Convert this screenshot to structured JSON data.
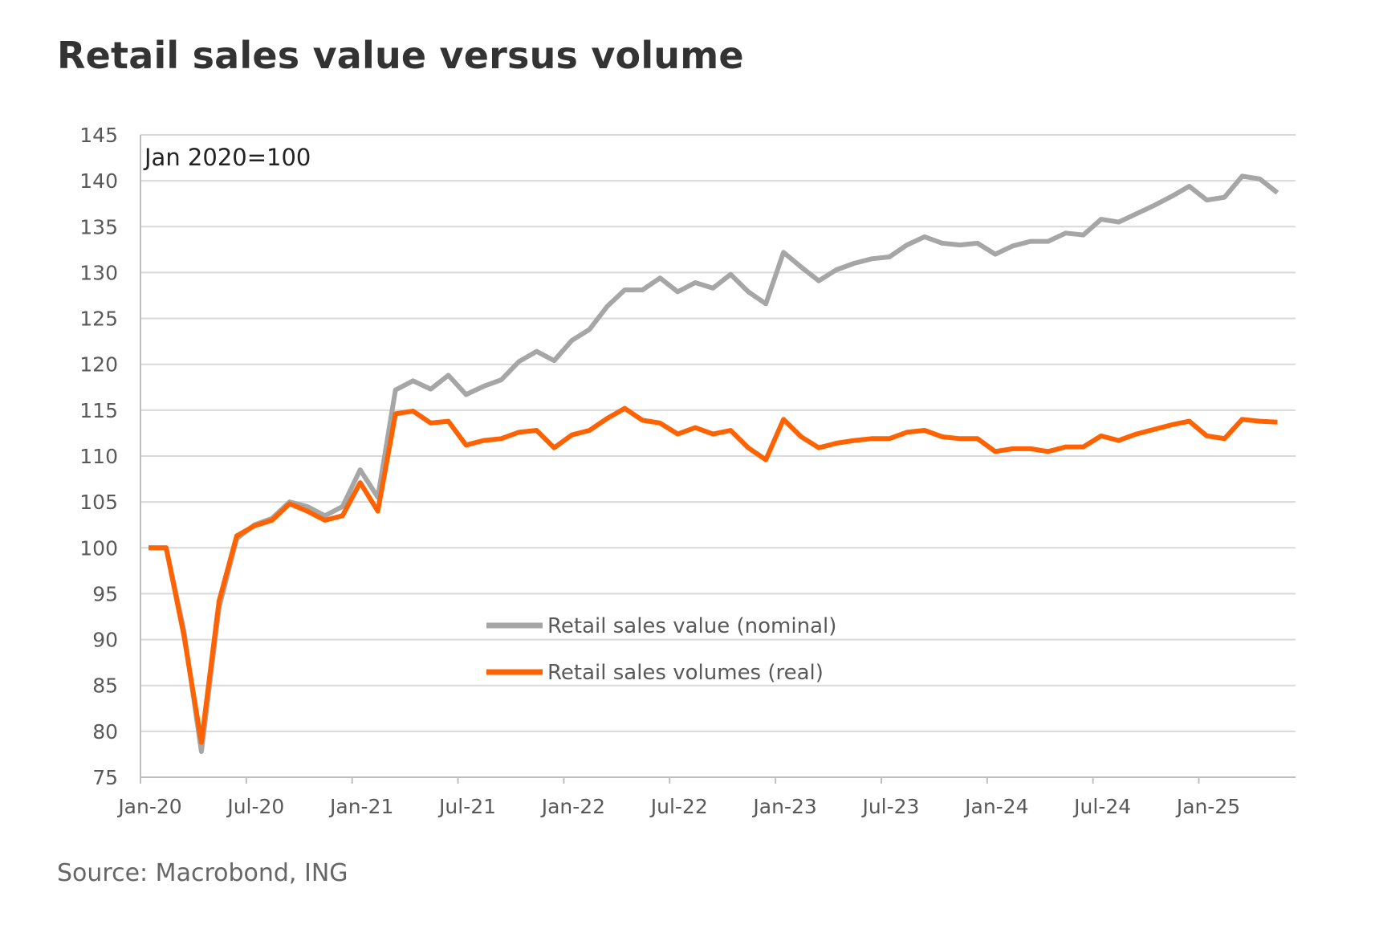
{
  "page": {
    "title": "Retail sales value versus volume",
    "source": "Source: Macrobond, ING"
  },
  "colors": {
    "value_series": "#a6a6a6",
    "volume_series": "#ff6200",
    "grid": "#d9d9d9",
    "axis": "#bfbfbf"
  },
  "chart_data": {
    "type": "line",
    "title": "Retail sales value versus volume",
    "annotation": "Jan 2020=100",
    "xlabel": "",
    "ylabel": "",
    "ylim": [
      75,
      145
    ],
    "y_ticks": [
      145,
      140,
      135,
      130,
      125,
      120,
      115,
      110,
      105,
      100,
      95,
      90,
      85,
      80,
      75
    ],
    "x_tick_labels": [
      "Jan-20",
      "Jul-20",
      "Jan-21",
      "Jul-21",
      "Jan-22",
      "Jul-22",
      "Jan-23",
      "Jul-23",
      "Jan-24",
      "Jul-24",
      "Jan-25"
    ],
    "x_tick_index": [
      0,
      6,
      12,
      18,
      24,
      30,
      36,
      42,
      48,
      54,
      60
    ],
    "grid": true,
    "legend_position": "center",
    "months": [
      "Jan-20",
      "Feb-20",
      "Mar-20",
      "Apr-20",
      "May-20",
      "Jun-20",
      "Jul-20",
      "Aug-20",
      "Sep-20",
      "Oct-20",
      "Nov-20",
      "Dec-20",
      "Jan-21",
      "Feb-21",
      "Mar-21",
      "Apr-21",
      "May-21",
      "Jun-21",
      "Jul-21",
      "Aug-21",
      "Sep-21",
      "Oct-21",
      "Nov-21",
      "Dec-21",
      "Jan-22",
      "Feb-22",
      "Mar-22",
      "Apr-22",
      "May-22",
      "Jun-22",
      "Jul-22",
      "Aug-22",
      "Sep-22",
      "Oct-22",
      "Nov-22",
      "Dec-22",
      "Jan-23",
      "Feb-23",
      "Mar-23",
      "Apr-23",
      "May-23",
      "Jun-23",
      "Jul-23",
      "Aug-23",
      "Sep-23",
      "Oct-23",
      "Nov-23",
      "Dec-23",
      "Jan-24",
      "Feb-24",
      "Mar-24",
      "Apr-24",
      "May-24",
      "Jun-24",
      "Jul-24",
      "Aug-24",
      "Sep-24",
      "Oct-24",
      "Nov-24",
      "Dec-24",
      "Jan-25",
      "Feb-25",
      "Mar-25",
      "Apr-25",
      "May-25"
    ],
    "series": [
      {
        "name": "Retail sales value (nominal)",
        "values": [
          100,
          100,
          91,
          77.8,
          93.5,
          101,
          102.5,
          103.2,
          105,
          104.5,
          103.5,
          104.5,
          108.5,
          105.5,
          117.2,
          118.2,
          117.3,
          118.8,
          116.7,
          117.6,
          118.3,
          120.3,
          121.4,
          120.4,
          122.6,
          123.8,
          126.3,
          128.1,
          128.1,
          129.4,
          127.9,
          128.9,
          128.3,
          129.8,
          127.9,
          126.6,
          132.2,
          130.6,
          129.1,
          130.3,
          131.0,
          131.5,
          131.7,
          133.0,
          133.9,
          133.2,
          133.0,
          133.2,
          132.0,
          132.9,
          133.4,
          133.4,
          134.3,
          134.1,
          135.8,
          135.5,
          136.4,
          137.3,
          138.3,
          139.4,
          137.9,
          138.2,
          140.5,
          140.2,
          138.7
        ]
      },
      {
        "name": "Retail sales volumes (real)",
        "values": [
          100,
          100,
          90.5,
          78.8,
          94.2,
          101.3,
          102.4,
          103.0,
          104.8,
          104.0,
          103.0,
          103.5,
          107.1,
          104.0,
          114.6,
          114.9,
          113.6,
          113.8,
          111.2,
          111.7,
          111.9,
          112.6,
          112.8,
          110.9,
          112.3,
          112.8,
          114.1,
          115.2,
          113.9,
          113.6,
          112.4,
          113.1,
          112.4,
          112.8,
          110.9,
          109.6,
          114.0,
          112.1,
          110.9,
          111.4,
          111.7,
          111.9,
          111.9,
          112.6,
          112.8,
          112.1,
          111.9,
          111.9,
          110.5,
          110.8,
          110.8,
          110.5,
          111.0,
          111.0,
          112.2,
          111.7,
          112.4,
          112.9,
          113.4,
          113.8,
          112.2,
          111.9,
          114.0,
          113.8,
          113.7
        ]
      }
    ]
  }
}
